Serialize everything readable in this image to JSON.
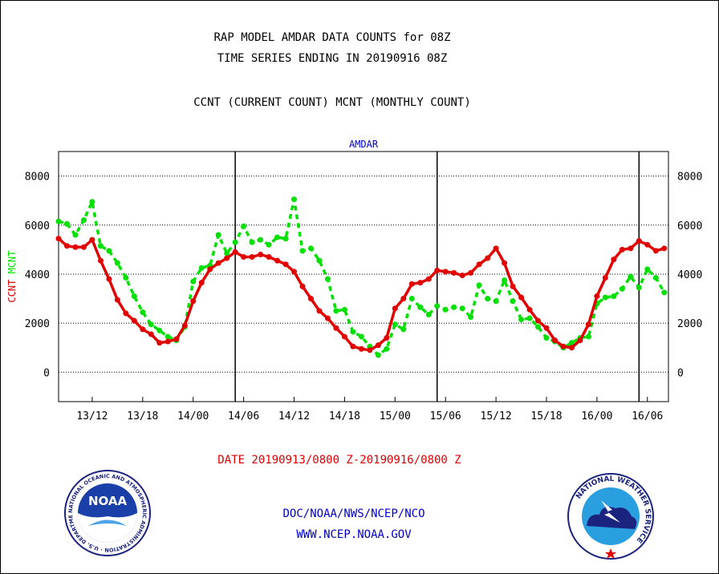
{
  "header": {
    "title_line1": "RAP MODEL AMDAR DATA COUNTS for 08Z",
    "title_line2": "TIME SERIES ENDING IN 20190916 08Z",
    "subtitle": "CCNT (CURRENT COUNT) MCNT (MONTHLY COUNT)"
  },
  "footer": {
    "date_range": "DATE 20190913/0800 Z-20190916/0800 Z",
    "agency": "DOC/NOAA/NWS/NCEP/NCO",
    "website": "WWW.NCEP.NOAA.GOV",
    "noaa_logo_text": "NOAA",
    "noaa_ring_text": "NATIONAL OCEANIC AND ATMOSPHERIC ADMINISTRATION · U.S. DEPARTMENT OF COMMERCE ·",
    "nws_ring_text": "NATIONAL WEATHER SERVICE"
  },
  "colors": {
    "ccnt": "#e00000",
    "mcnt": "#00e000",
    "panel_label": "#0000cc",
    "footer_link": "#0000cc"
  },
  "chart_data": {
    "type": "line",
    "title": "AMDAR",
    "ylabel_left": [
      "CCNT",
      "MCNT"
    ],
    "ylim": [
      -1200,
      9000
    ],
    "yticks": [
      0,
      2000,
      4000,
      6000,
      8000
    ],
    "xlim": [
      9,
      81.5
    ],
    "x_tick_labels": [
      {
        "x": 13,
        "label": "13/12"
      },
      {
        "x": 19,
        "label": "13/18"
      },
      {
        "x": 25,
        "label": "14/00"
      },
      {
        "x": 31,
        "label": "14/06"
      },
      {
        "x": 37,
        "label": "14/12"
      },
      {
        "x": 43,
        "label": "14/18"
      },
      {
        "x": 49,
        "label": "15/00"
      },
      {
        "x": 55,
        "label": "15/06"
      },
      {
        "x": 61,
        "label": "15/12"
      },
      {
        "x": 67,
        "label": "15/18"
      },
      {
        "x": 73,
        "label": "16/00"
      },
      {
        "x": 79,
        "label": "16/06"
      }
    ],
    "day_boundaries": [
      30,
      54,
      78
    ],
    "grid": "dotted horizontal at 0, 2000, 4000, 6000, 8000",
    "series": [
      {
        "name": "CCNT",
        "style": "solid",
        "x": [
          9,
          10,
          11,
          12,
          13,
          14,
          15,
          16,
          17,
          18,
          19,
          20,
          21,
          22,
          23,
          24,
          25,
          26,
          27,
          28,
          29,
          30,
          31,
          32,
          33,
          34,
          35,
          36,
          37,
          38,
          39,
          40,
          41,
          42,
          43,
          44,
          45,
          46,
          47,
          48,
          49,
          50,
          51,
          52,
          53,
          54,
          55,
          56,
          57,
          58,
          59,
          60,
          61,
          62,
          63,
          64,
          65,
          66,
          67,
          68,
          69,
          70,
          71,
          72,
          73,
          74,
          75,
          76,
          77,
          78,
          79,
          80,
          81
        ],
        "values": [
          5450,
          5150,
          5100,
          5100,
          5400,
          4550,
          3800,
          2950,
          2400,
          2100,
          1750,
          1550,
          1200,
          1250,
          1350,
          1900,
          2900,
          3650,
          4200,
          4450,
          4650,
          4900,
          4700,
          4700,
          4800,
          4700,
          4550,
          4400,
          4100,
          3500,
          3000,
          2500,
          2200,
          1800,
          1450,
          1050,
          950,
          900,
          1100,
          1400,
          2600,
          3000,
          3600,
          3650,
          3800,
          4150,
          4100,
          4050,
          3950,
          4050,
          4400,
          4650,
          5050,
          4450,
          3500,
          3050,
          2550,
          2100,
          1800,
          1300,
          1050,
          1000,
          1300,
          1950,
          3100,
          3850,
          4600,
          5000,
          5050,
          5350,
          5200,
          4950,
          5050
        ]
      },
      {
        "name": "MCNT",
        "style": "dashed",
        "x": [
          9,
          10,
          11,
          12,
          13,
          14,
          15,
          16,
          17,
          18,
          19,
          20,
          21,
          22,
          23,
          24,
          25,
          26,
          27,
          28,
          29,
          30,
          31,
          32,
          33,
          34,
          35,
          36,
          37,
          38,
          39,
          40,
          41,
          42,
          43,
          44,
          45,
          46,
          47,
          48,
          49,
          50,
          51,
          52,
          53,
          54,
          55,
          56,
          57,
          58,
          59,
          60,
          61,
          62,
          63,
          64,
          65,
          66,
          67,
          68,
          69,
          70,
          71,
          72,
          73,
          74,
          75,
          76,
          77,
          78,
          79,
          80,
          81
        ],
        "values": [
          6150,
          6050,
          5600,
          6200,
          6950,
          5150,
          4950,
          4450,
          3850,
          3100,
          2450,
          1950,
          1700,
          1450,
          1300,
          1850,
          3700,
          4250,
          4350,
          5600,
          4850,
          5300,
          5950,
          5300,
          5400,
          5200,
          5500,
          5450,
          7050,
          4950,
          5050,
          4550,
          3800,
          2500,
          2550,
          1650,
          1450,
          1050,
          700,
          950,
          1950,
          1750,
          3000,
          2650,
          2350,
          2700,
          2550,
          2650,
          2600,
          2250,
          3550,
          3000,
          2900,
          3750,
          2900,
          2150,
          2200,
          1850,
          1400,
          1250,
          1000,
          1200,
          1400,
          1450,
          2800,
          3050,
          3100,
          3400,
          3900,
          3450,
          4200,
          3850,
          3250
        ]
      }
    ]
  }
}
